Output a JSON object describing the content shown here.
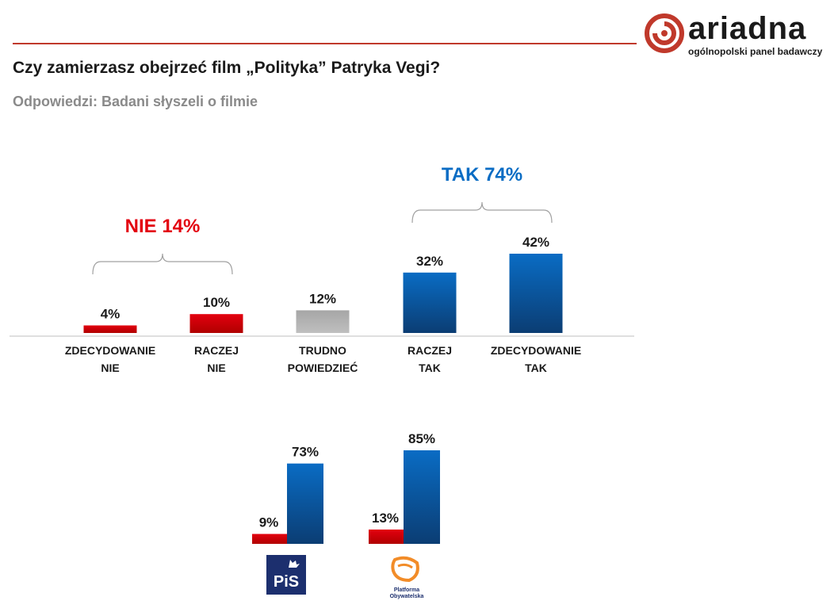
{
  "header": {
    "title": "Czy zamierzasz obejrzeć film „Polityka” Patryka Vegi?",
    "subtitle": "Odpowiedzi: Badani słyszeli o filmie"
  },
  "logo": {
    "word": "ariadna",
    "tagline": "ogólnopolski panel badawczy",
    "color": "#c0392b"
  },
  "colors": {
    "red": "#e3000f",
    "blue": "#0a6cc4",
    "gray": "#a6a6a6"
  },
  "chart_data": [
    {
      "type": "bar",
      "categories": [
        [
          "ZDECYDOWANIE",
          "NIE"
        ],
        [
          "RACZEJ",
          "NIE"
        ],
        [
          "TRUDNO",
          "POWIEDZIEĆ"
        ],
        [
          "RACZEJ",
          "TAK"
        ],
        [
          "ZDECYDOWANIE",
          "TAK"
        ]
      ],
      "values": [
        4,
        10,
        12,
        32,
        42
      ],
      "value_labels": [
        "4%",
        "10%",
        "12%",
        "32%",
        "42%"
      ],
      "bar_colors": [
        "red",
        "red",
        "gray",
        "blue",
        "blue"
      ],
      "groups": [
        {
          "label": "NIE 14%",
          "color": "red",
          "from": 0,
          "to": 1
        },
        {
          "label": "TAK 74%",
          "color": "blue",
          "from": 3,
          "to": 4
        }
      ],
      "ylim": [
        0,
        42
      ]
    },
    {
      "type": "bar",
      "categories": [
        "PiS",
        "Platforma Obywatelska"
      ],
      "series": [
        {
          "color": "red",
          "values": [
            9,
            13
          ],
          "labels": [
            "9%",
            "13%"
          ]
        },
        {
          "color": "blue",
          "values": [
            73,
            85
          ],
          "labels": [
            "73%",
            "85%"
          ]
        }
      ],
      "ylim": [
        0,
        85
      ]
    }
  ],
  "party_logos": [
    {
      "name": "pis-logo",
      "text": "PiS"
    },
    {
      "name": "po-logo",
      "text": "Platforma Obywatelska",
      "line1": "Platforma",
      "line2": "Obywatelska"
    }
  ]
}
